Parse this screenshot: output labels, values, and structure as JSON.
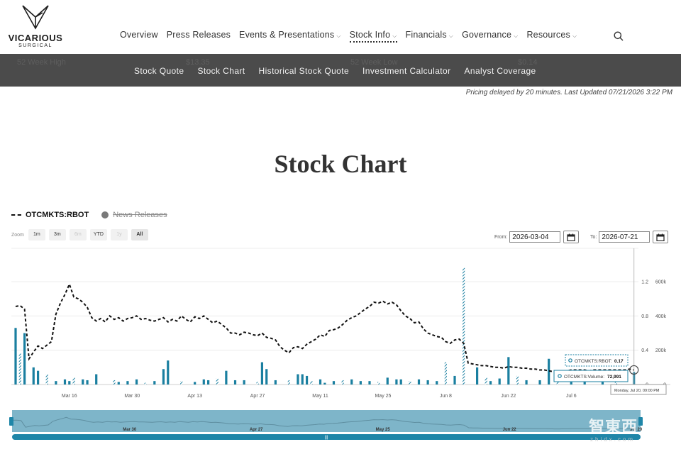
{
  "brand": {
    "name": "VICARIOUS",
    "tagline": "SURGICAL"
  },
  "nav": {
    "items": [
      {
        "label": "Overview",
        "caret": false
      },
      {
        "label": "Press Releases",
        "caret": false
      },
      {
        "label": "Events & Presentations",
        "caret": true
      },
      {
        "label": "Stock Info",
        "caret": true,
        "active": true
      },
      {
        "label": "Financials",
        "caret": true
      },
      {
        "label": "Governance",
        "caret": true
      },
      {
        "label": "Resources",
        "caret": true
      }
    ]
  },
  "ghost": {
    "high_label": "52 Week High",
    "high_value": "$13.35",
    "low_label": "52 Week Low",
    "low_value": "$0.14"
  },
  "subnav": {
    "items": [
      "Stock Quote",
      "Stock Chart",
      "Historical Stock Quote",
      "Investment Calculator",
      "Analyst Coverage"
    ]
  },
  "pricing_note": "Pricing delayed by 20 minutes. Last Updated 07/21/2026 3:22 PM",
  "page_title": "Stock Chart",
  "legend": {
    "main": "OTCMKTS:RBOT",
    "news": "News Releases"
  },
  "zoom": {
    "label": "Zoom",
    "buttons": [
      {
        "label": "1m",
        "state": "enabled"
      },
      {
        "label": "3m",
        "state": "enabled"
      },
      {
        "label": "6m",
        "state": "disabled"
      },
      {
        "label": "YTD",
        "state": "enabled"
      },
      {
        "label": "1y",
        "state": "disabled"
      },
      {
        "label": "All",
        "state": "selected"
      }
    ]
  },
  "range": {
    "from_label": "From:",
    "from_value": "2026-03-04",
    "to_label": "To:",
    "to_value": "2026-07-21"
  },
  "tooltip": {
    "price_label": "OTCMKTS:RBOT:",
    "price_value": "0.17",
    "volume_label": "OTCMKTS:Volume:",
    "volume_value": "72,991",
    "date": "Monday, Jul 20, 09:00 PM"
  },
  "navigator": {
    "labels": [
      "Mar 30",
      "Apr 27",
      "May 25",
      "Jun 22",
      "Jul 20"
    ]
  },
  "watermark": {
    "text": "智東西",
    "sub": "zhidx.com"
  },
  "colors": {
    "price_line": "#111111",
    "volume_bar": "#1a7fa0",
    "navigator_fill": "#7eb5c9",
    "navigator_bar": "#1f86a8",
    "subnav_bg": "#4b4b4b"
  },
  "chart_data": {
    "type": "line",
    "title": "",
    "x_start": "2026-03-04",
    "x_end": "2026-07-21",
    "x_ticks": [
      "Mar 16",
      "Mar 30",
      "Apr 13",
      "Apr 27",
      "May 11",
      "May 25",
      "Jun 8",
      "Jun 22",
      "Jul 6"
    ],
    "price_axis": {
      "ticks": [
        "0",
        "0.4",
        "0.8",
        "1.2"
      ],
      "range": [
        0,
        1.2
      ]
    },
    "volume_axis": {
      "ticks": [
        "0",
        "200k",
        "400k",
        "600k"
      ],
      "range": [
        0,
        600000
      ]
    },
    "grid": true,
    "legend_position": "top-left",
    "series": [
      {
        "name": "OTCMKTS:RBOT",
        "kind": "price",
        "style": "dashed",
        "points": [
          [
            "2026-03-04",
            0.91
          ],
          [
            "2026-03-05",
            0.92
          ],
          [
            "2026-03-06",
            0.88
          ],
          [
            "2026-03-07",
            0.3
          ],
          [
            "2026-03-08",
            0.38
          ],
          [
            "2026-03-09",
            0.45
          ],
          [
            "2026-03-10",
            0.42
          ],
          [
            "2026-03-11",
            0.46
          ],
          [
            "2026-03-12",
            0.5
          ],
          [
            "2026-03-13",
            0.82
          ],
          [
            "2026-03-14",
            0.95
          ],
          [
            "2026-03-15",
            1.05
          ],
          [
            "2026-03-16",
            1.17
          ],
          [
            "2026-03-17",
            1.02
          ],
          [
            "2026-03-18",
            1.0
          ],
          [
            "2026-03-19",
            0.96
          ],
          [
            "2026-03-20",
            0.9
          ],
          [
            "2026-03-21",
            0.78
          ],
          [
            "2026-03-22",
            0.74
          ],
          [
            "2026-03-23",
            0.77
          ],
          [
            "2026-03-24",
            0.73
          ],
          [
            "2026-03-25",
            0.8
          ],
          [
            "2026-03-26",
            0.76
          ],
          [
            "2026-03-27",
            0.78
          ],
          [
            "2026-03-28",
            0.74
          ],
          [
            "2026-03-29",
            0.77
          ],
          [
            "2026-03-30",
            0.78
          ],
          [
            "2026-03-31",
            0.8
          ],
          [
            "2026-04-01",
            0.76
          ],
          [
            "2026-04-02",
            0.77
          ],
          [
            "2026-04-03",
            0.75
          ],
          [
            "2026-04-04",
            0.74
          ],
          [
            "2026-04-05",
            0.76
          ],
          [
            "2026-04-06",
            0.78
          ],
          [
            "2026-04-07",
            0.73
          ],
          [
            "2026-04-08",
            0.76
          ],
          [
            "2026-04-09",
            0.74
          ],
          [
            "2026-04-10",
            0.8
          ],
          [
            "2026-04-11",
            0.76
          ],
          [
            "2026-04-12",
            0.73
          ],
          [
            "2026-04-13",
            0.79
          ],
          [
            "2026-04-14",
            0.77
          ],
          [
            "2026-04-15",
            0.8
          ],
          [
            "2026-04-16",
            0.76
          ],
          [
            "2026-04-17",
            0.72
          ],
          [
            "2026-04-18",
            0.74
          ],
          [
            "2026-04-19",
            0.7
          ],
          [
            "2026-04-20",
            0.66
          ],
          [
            "2026-04-21",
            0.6
          ],
          [
            "2026-04-22",
            0.6
          ],
          [
            "2026-04-23",
            0.58
          ],
          [
            "2026-04-24",
            0.61
          ],
          [
            "2026-04-25",
            0.6
          ],
          [
            "2026-04-26",
            0.58
          ],
          [
            "2026-04-27",
            0.57
          ],
          [
            "2026-04-28",
            0.6
          ],
          [
            "2026-04-29",
            0.55
          ],
          [
            "2026-04-30",
            0.54
          ],
          [
            "2026-05-01",
            0.52
          ],
          [
            "2026-05-02",
            0.44
          ],
          [
            "2026-05-03",
            0.4
          ],
          [
            "2026-05-04",
            0.37
          ],
          [
            "2026-05-05",
            0.43
          ],
          [
            "2026-05-06",
            0.44
          ],
          [
            "2026-05-07",
            0.42
          ],
          [
            "2026-05-08",
            0.47
          ],
          [
            "2026-05-09",
            0.5
          ],
          [
            "2026-05-10",
            0.53
          ],
          [
            "2026-05-11",
            0.58
          ],
          [
            "2026-05-12",
            0.56
          ],
          [
            "2026-05-13",
            0.63
          ],
          [
            "2026-05-14",
            0.64
          ],
          [
            "2026-05-15",
            0.66
          ],
          [
            "2026-05-16",
            0.7
          ],
          [
            "2026-05-17",
            0.75
          ],
          [
            "2026-05-18",
            0.78
          ],
          [
            "2026-05-19",
            0.8
          ],
          [
            "2026-05-20",
            0.84
          ],
          [
            "2026-05-21",
            0.88
          ],
          [
            "2026-05-22",
            0.91
          ],
          [
            "2026-05-23",
            0.96
          ],
          [
            "2026-05-24",
            0.95
          ],
          [
            "2026-05-25",
            0.97
          ],
          [
            "2026-05-26",
            0.94
          ],
          [
            "2026-05-27",
            0.96
          ],
          [
            "2026-05-28",
            0.93
          ],
          [
            "2026-05-29",
            0.86
          ],
          [
            "2026-05-30",
            0.8
          ],
          [
            "2026-05-31",
            0.77
          ],
          [
            "2026-06-01",
            0.72
          ],
          [
            "2026-06-02",
            0.73
          ],
          [
            "2026-06-03",
            0.65
          ],
          [
            "2026-06-04",
            0.6
          ],
          [
            "2026-06-05",
            0.58
          ],
          [
            "2026-06-06",
            0.56
          ],
          [
            "2026-06-07",
            0.55
          ],
          [
            "2026-06-08",
            0.5
          ],
          [
            "2026-06-09",
            0.48
          ],
          [
            "2026-06-10",
            0.52
          ],
          [
            "2026-06-11",
            0.53
          ],
          [
            "2026-06-12",
            0.48
          ],
          [
            "2026-06-13",
            0.25
          ],
          [
            "2026-06-14",
            0.24
          ],
          [
            "2026-06-15",
            0.23
          ],
          [
            "2026-06-16",
            0.22
          ],
          [
            "2026-06-17",
            0.22
          ],
          [
            "2026-06-18",
            0.21
          ],
          [
            "2026-06-19",
            0.2
          ],
          [
            "2026-06-20",
            0.2
          ],
          [
            "2026-06-21",
            0.19
          ],
          [
            "2026-06-22",
            0.21
          ],
          [
            "2026-06-23",
            0.2
          ],
          [
            "2026-06-24",
            0.2
          ],
          [
            "2026-06-25",
            0.19
          ],
          [
            "2026-06-26",
            0.19
          ],
          [
            "2026-06-27",
            0.18
          ],
          [
            "2026-06-28",
            0.18
          ],
          [
            "2026-06-29",
            0.17
          ],
          [
            "2026-06-30",
            0.17
          ],
          [
            "2026-07-01",
            0.16
          ],
          [
            "2026-07-02",
            0.15
          ],
          [
            "2026-07-03",
            0.15
          ],
          [
            "2026-07-04",
            0.16
          ],
          [
            "2026-07-05",
            0.16
          ],
          [
            "2026-07-06",
            0.17
          ],
          [
            "2026-07-07",
            0.17
          ],
          [
            "2026-07-08",
            0.17
          ],
          [
            "2026-07-09",
            0.17
          ],
          [
            "2026-07-10",
            0.16
          ],
          [
            "2026-07-11",
            0.17
          ],
          [
            "2026-07-12",
            0.17
          ],
          [
            "2026-07-13",
            0.17
          ],
          [
            "2026-07-14",
            0.17
          ],
          [
            "2026-07-15",
            0.17
          ],
          [
            "2026-07-16",
            0.17
          ],
          [
            "2026-07-17",
            0.17
          ],
          [
            "2026-07-18",
            0.17
          ],
          [
            "2026-07-19",
            0.18
          ],
          [
            "2026-07-20",
            0.17
          ]
        ]
      },
      {
        "name": "OTCMKTS:Volume",
        "kind": "volume",
        "points": [
          [
            "2026-03-04",
            330000
          ],
          [
            "2026-03-05",
            180000
          ],
          [
            "2026-03-06",
            300000
          ],
          [
            "2026-03-08",
            100000
          ],
          [
            "2026-03-09",
            80000
          ],
          [
            "2026-03-11",
            60000
          ],
          [
            "2026-03-13",
            20000
          ],
          [
            "2026-03-15",
            30000
          ],
          [
            "2026-03-16",
            20000
          ],
          [
            "2026-03-17",
            40000
          ],
          [
            "2026-03-19",
            30000
          ],
          [
            "2026-03-20",
            25000
          ],
          [
            "2026-03-22",
            60000
          ],
          [
            "2026-03-26",
            25000
          ],
          [
            "2026-03-27",
            15000
          ],
          [
            "2026-03-29",
            20000
          ],
          [
            "2026-03-31",
            30000
          ],
          [
            "2026-04-02",
            10000
          ],
          [
            "2026-04-04",
            20000
          ],
          [
            "2026-04-06",
            90000
          ],
          [
            "2026-04-07",
            140000
          ],
          [
            "2026-04-10",
            20000
          ],
          [
            "2026-04-13",
            15000
          ],
          [
            "2026-04-15",
            30000
          ],
          [
            "2026-04-16",
            25000
          ],
          [
            "2026-04-18",
            35000
          ],
          [
            "2026-04-20",
            80000
          ],
          [
            "2026-04-22",
            25000
          ],
          [
            "2026-04-24",
            25000
          ],
          [
            "2026-04-27",
            15000
          ],
          [
            "2026-04-28",
            130000
          ],
          [
            "2026-04-29",
            90000
          ],
          [
            "2026-05-01",
            25000
          ],
          [
            "2026-05-04",
            25000
          ],
          [
            "2026-05-06",
            60000
          ],
          [
            "2026-05-07",
            60000
          ],
          [
            "2026-05-08",
            50000
          ],
          [
            "2026-05-09",
            20000
          ],
          [
            "2026-05-11",
            30000
          ],
          [
            "2026-05-12",
            10000
          ],
          [
            "2026-05-14",
            20000
          ],
          [
            "2026-05-16",
            25000
          ],
          [
            "2026-05-18",
            30000
          ],
          [
            "2026-05-20",
            20000
          ],
          [
            "2026-05-22",
            20000
          ],
          [
            "2026-05-24",
            15000
          ],
          [
            "2026-05-26",
            40000
          ],
          [
            "2026-05-28",
            30000
          ],
          [
            "2026-05-29",
            30000
          ],
          [
            "2026-05-31",
            20000
          ],
          [
            "2026-06-02",
            30000
          ],
          [
            "2026-06-04",
            25000
          ],
          [
            "2026-06-06",
            20000
          ],
          [
            "2026-06-08",
            130000
          ],
          [
            "2026-06-10",
            50000
          ],
          [
            "2026-06-12",
            680000
          ],
          [
            "2026-06-15",
            100000
          ],
          [
            "2026-06-17",
            40000
          ],
          [
            "2026-06-18",
            20000
          ],
          [
            "2026-06-20",
            35000
          ],
          [
            "2026-06-22",
            160000
          ],
          [
            "2026-06-24",
            50000
          ],
          [
            "2026-06-26",
            25000
          ],
          [
            "2026-06-29",
            25000
          ],
          [
            "2026-07-01",
            150000
          ],
          [
            "2026-07-03",
            60000
          ],
          [
            "2026-07-06",
            30000
          ],
          [
            "2026-07-09",
            40000
          ],
          [
            "2026-07-13",
            50000
          ],
          [
            "2026-07-16",
            60000
          ],
          [
            "2026-07-20",
            72991
          ]
        ]
      }
    ]
  }
}
